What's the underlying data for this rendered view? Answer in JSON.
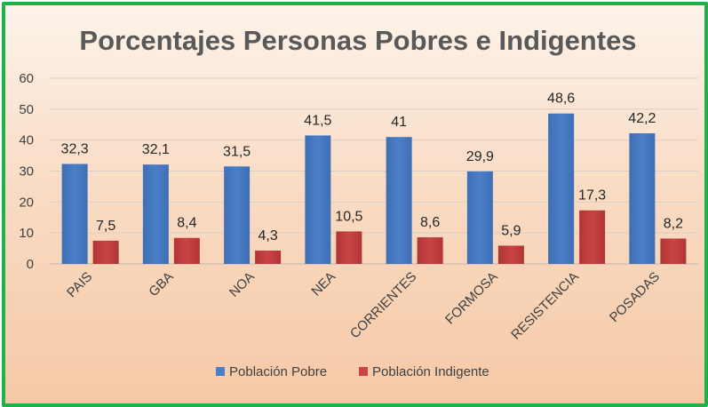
{
  "chart_data": {
    "type": "bar",
    "title": "Porcentajes Personas Pobres e Indigentes",
    "categories": [
      "PAIS",
      "GBA",
      "NOA",
      "NEA",
      "CORRIENTES",
      "FORMOSA",
      "RESISTENCIA",
      "POSADAS"
    ],
    "series": [
      {
        "name": "Población Pobre",
        "values": [
          32.3,
          32.1,
          31.5,
          41.5,
          41,
          29.9,
          48.6,
          42.2
        ],
        "labels": [
          "32,3",
          "32,1",
          "31,5",
          "41,5",
          "41",
          "29,9",
          "48,6",
          "42,2"
        ],
        "color": "#4a7fc9"
      },
      {
        "name": "Población Indigente",
        "values": [
          7.5,
          8.4,
          4.3,
          10.5,
          8.6,
          5.9,
          17.3,
          8.2
        ],
        "labels": [
          "7,5",
          "8,4",
          "4,3",
          "10,5",
          "8,6",
          "5,9",
          "17,3",
          "8,2"
        ],
        "color": "#c94444"
      }
    ],
    "ylim": [
      0,
      60
    ],
    "yticks": [
      "0",
      "10",
      "20",
      "30",
      "40",
      "50",
      "60"
    ],
    "grid": true,
    "legend_position": "bottom"
  }
}
